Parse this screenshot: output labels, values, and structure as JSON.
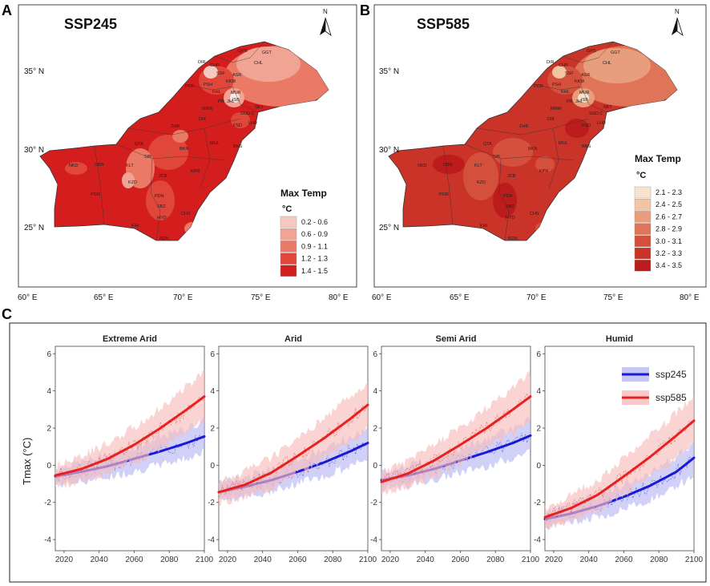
{
  "panel_a": {
    "letter": "A",
    "title": "SSP245",
    "north": "N",
    "lat_labels": [
      "35° N",
      "30° N",
      "25° N"
    ],
    "lon_labels": [
      "60° E",
      "65° E",
      "70° E",
      "75° E",
      "80° E"
    ],
    "legend": {
      "title": "Max Temp",
      "unit": "°C",
      "classes": [
        {
          "label": "0.2 - 0.6",
          "color": "#f6c9c0"
        },
        {
          "label": "0.6 - 0.9",
          "color": "#f1a394"
        },
        {
          "label": "0.9 - 1.1",
          "color": "#ea7a66"
        },
        {
          "label": "1.2 - 1.3",
          "color": "#e0463a"
        },
        {
          "label": "1.4 - 1.5",
          "color": "#d11f1f"
        }
      ]
    },
    "cities": [
      "DIR",
      "CHR",
      "SSF",
      "PCR",
      "PSH",
      "KHL",
      "KKM",
      "MUR",
      "ISB",
      "JHL",
      "SKT",
      "LHR",
      "FSD",
      "SGD C",
      "MNW",
      "DIK",
      "ZHB",
      "QTA",
      "BKN",
      "MUL",
      "BNS",
      "SIB",
      "KLT",
      "DBN",
      "NKD",
      "JCB",
      "KPR",
      "PGR",
      "KZD",
      "PDN",
      "SBZ",
      "HYD",
      "CHS",
      "KHI",
      "BDN",
      "GPS",
      "GGT",
      "CHL",
      "ASR",
      "PR"
    ]
  },
  "panel_b": {
    "letter": "B",
    "title": "SSP585",
    "north": "N",
    "lat_labels": [
      "35° N",
      "30° N",
      "25° N"
    ],
    "lon_labels": [
      "60° E",
      "65° E",
      "70° E",
      "75° E",
      "80° E"
    ],
    "legend": {
      "title": "Max Temp",
      "unit": "°C",
      "classes": [
        {
          "label": "2.1 - 2.3",
          "color": "#f7e3cc"
        },
        {
          "label": "2.4 - 2.5",
          "color": "#f2c4a4"
        },
        {
          "label": "2.6 - 2.7",
          "color": "#e89e7c"
        },
        {
          "label": "2.8 - 2.9",
          "color": "#df7458"
        },
        {
          "label": "3.0 - 3.1",
          "color": "#d4503c"
        },
        {
          "label": "3.2 - 3.3",
          "color": "#c93328"
        },
        {
          "label": "3.4 - 3.5",
          "color": "#bd1c1c"
        }
      ]
    },
    "cities": [
      "DIR",
      "CHR",
      "SSF",
      "PCR",
      "PSH",
      "KHL",
      "KKM",
      "MUR",
      "ISB",
      "JHL",
      "SKT",
      "LHR",
      "FSD",
      "SGD C",
      "MNW",
      "DIK",
      "ZHB",
      "QTA",
      "BKN",
      "MUL",
      "BNS",
      "SIB",
      "KLT",
      "DBN",
      "NKD",
      "JCB",
      "KPR",
      "PGR",
      "KZD",
      "PDN",
      "SBZ",
      "HYD",
      "CHS",
      "KHI",
      "BDN",
      "GPS",
      "GGT",
      "CHL",
      "ASR",
      "PR"
    ]
  },
  "panel_c": {
    "letter": "C",
    "ylabel": "Tmax (°C)",
    "legend": [
      {
        "name": "ssp245",
        "color": "#1a1ad6",
        "band": "#b9b9f2"
      },
      {
        "name": "ssp585",
        "color": "#e8201e",
        "band": "#f7bcbc"
      }
    ]
  },
  "chart_data": {
    "type": "line",
    "ylabel": "Tmax (°C)",
    "xlim": [
      2015,
      2100
    ],
    "ylim": [
      -4.6,
      6.4
    ],
    "x_ticks": [
      2020,
      2040,
      2060,
      2080,
      2100
    ],
    "y_ticks": [
      -4,
      -2,
      0,
      2,
      4,
      6
    ],
    "x_tick_labels": [
      "2020",
      "2040",
      "2060",
      "2080",
      "2100"
    ],
    "y_tick_labels": [
      "-4",
      "-2",
      "0",
      "2",
      "4",
      "6"
    ],
    "x": [
      2015,
      2030,
      2045,
      2060,
      2075,
      2090,
      2100
    ],
    "facets": [
      {
        "title": "Extreme Arid",
        "series": [
          {
            "name": "ssp245",
            "values": [
              -0.6,
              -0.35,
              -0.05,
              0.35,
              0.75,
              1.2,
              1.55
            ]
          },
          {
            "name": "ssp585",
            "values": [
              -0.55,
              -0.2,
              0.35,
              1.1,
              2.0,
              3.0,
              3.7
            ]
          }
        ]
      },
      {
        "title": "Arid",
        "series": [
          {
            "name": "ssp245",
            "values": [
              -1.45,
              -1.15,
              -0.8,
              -0.35,
              0.15,
              0.75,
              1.2
            ]
          },
          {
            "name": "ssp585",
            "values": [
              -1.45,
              -1.05,
              -0.4,
              0.5,
              1.45,
              2.5,
              3.25
            ]
          }
        ]
      },
      {
        "title": "Semi Arid",
        "series": [
          {
            "name": "ssp245",
            "values": [
              -0.8,
              -0.55,
              -0.2,
              0.25,
              0.7,
              1.2,
              1.6
            ]
          },
          {
            "name": "ssp585",
            "values": [
              -0.9,
              -0.45,
              0.25,
              1.1,
              2.0,
              3.0,
              3.7
            ]
          }
        ]
      },
      {
        "title": "Humid",
        "series": [
          {
            "name": "ssp245",
            "values": [
              -2.9,
              -2.6,
              -2.2,
              -1.7,
              -1.1,
              -0.35,
              0.4
            ]
          },
          {
            "name": "ssp585",
            "values": [
              -2.8,
              -2.3,
              -1.6,
              -0.6,
              0.45,
              1.6,
              2.4
            ]
          }
        ]
      }
    ]
  }
}
